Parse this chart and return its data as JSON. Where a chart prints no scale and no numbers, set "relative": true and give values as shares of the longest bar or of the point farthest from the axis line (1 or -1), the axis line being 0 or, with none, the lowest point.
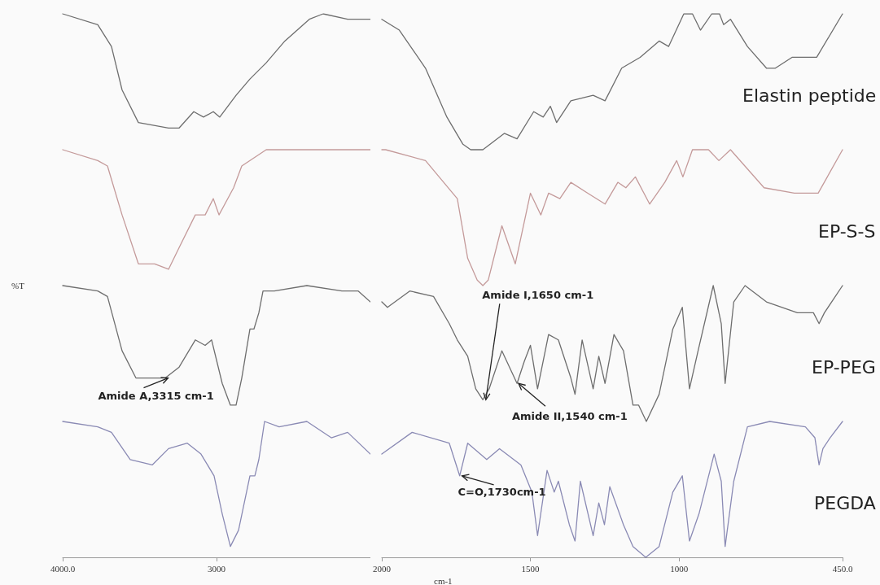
{
  "chart_data": [
    {
      "type": "line",
      "relative": true,
      "ylabel": "%T",
      "xlim": [
        4000,
        2000
      ],
      "xticks": [
        {
          "value": 4000,
          "label": "4000.0"
        },
        3000
      ],
      "grid": false,
      "legend": false,
      "marker": "none",
      "line_style": "solid",
      "series": [
        {
          "color": "#6e6e6e",
          "x": [
            4000,
            3772,
            3683,
            3614,
            3508,
            3312,
            3243,
            3148,
            3085,
            3021,
            2979,
            2873,
            2783,
            2677,
            2556,
            2397,
            2307,
            2148,
            2063,
            2011,
            2000
          ],
          "values": [
            1.0,
            0.98,
            0.94,
            0.86,
            0.8,
            0.79,
            0.79,
            0.82,
            0.81,
            0.82,
            0.81,
            0.85,
            0.88,
            0.91,
            0.95,
            0.99,
            1.0,
            0.99,
            0.99,
            0.99,
            0.99
          ]
        },
        {
          "color": "#c49a9a",
          "x": [
            4000,
            3772,
            3709,
            3614,
            3508,
            3402,
            3312,
            3243,
            3138,
            3074,
            3021,
            2984,
            2889,
            2836,
            2677,
            2328,
            2000
          ],
          "values": [
            0.75,
            0.73,
            0.72,
            0.63,
            0.54,
            0.54,
            0.53,
            0.57,
            0.63,
            0.63,
            0.66,
            0.63,
            0.68,
            0.72,
            0.75,
            0.75,
            0.75
          ]
        },
        {
          "color": "#6e6e6e",
          "x": [
            4000,
            3772,
            3709,
            3614,
            3524,
            3333,
            3243,
            3138,
            3074,
            3032,
            2963,
            2910,
            2873,
            2836,
            2783,
            2757,
            2725,
            2698,
            2624,
            2413,
            2185,
            2079,
            2000
          ],
          "values": [
            0.5,
            0.49,
            0.48,
            0.38,
            0.33,
            0.33,
            0.35,
            0.4,
            0.39,
            0.4,
            0.32,
            0.28,
            0.28,
            0.33,
            0.42,
            0.42,
            0.45,
            0.49,
            0.49,
            0.5,
            0.49,
            0.49,
            0.47
          ]
        },
        {
          "color": "#8a8ab4",
          "x": [
            4000,
            3772,
            3683,
            3561,
            3418,
            3312,
            3190,
            3101,
            3016,
            2963,
            2910,
            2857,
            2783,
            2751,
            2725,
            2688,
            2593,
            2413,
            2254,
            2148,
            2000
          ],
          "values": [
            0.25,
            0.24,
            0.23,
            0.18,
            0.17,
            0.2,
            0.21,
            0.19,
            0.15,
            0.08,
            0.02,
            0.05,
            0.15,
            0.15,
            0.18,
            0.25,
            0.24,
            0.25,
            0.22,
            0.23,
            0.19
          ]
        }
      ],
      "annotations": [
        {
          "text": "Amide A,3315 cm-1",
          "x": 3315,
          "y": 0.33
        }
      ]
    },
    {
      "type": "line",
      "relative": true,
      "xlabel": "cm-1",
      "xlim": [
        2000,
        450
      ],
      "xticks": [
        2000,
        1500,
        1000,
        {
          "value": 450,
          "label": "450.0"
        }
      ],
      "grid": false,
      "legend": false,
      "marker": "none",
      "line_style": "solid",
      "series": [
        {
          "name": "Elastin peptide",
          "color": "#6e6e6e",
          "x": [
            2000,
            1941,
            1853,
            1781,
            1727,
            1701,
            1674,
            1660,
            1588,
            1545,
            1489,
            1457,
            1433,
            1412,
            1364,
            1289,
            1249,
            1193,
            1131,
            1067,
            1035,
            984,
            955,
            928,
            890,
            864,
            850,
            827,
            770,
            706,
            676,
            620,
            537,
            450
          ],
          "values": [
            0.99,
            0.97,
            0.9,
            0.81,
            0.76,
            0.75,
            0.75,
            0.75,
            0.78,
            0.77,
            0.82,
            0.81,
            0.83,
            0.8,
            0.84,
            0.85,
            0.84,
            0.9,
            0.92,
            0.95,
            0.94,
            1.0,
            1.0,
            0.97,
            1.0,
            1.0,
            0.98,
            0.99,
            0.94,
            0.9,
            0.9,
            0.92,
            0.92,
            1.0
          ]
        },
        {
          "name": "EP-S-S",
          "color": "#c49a9a",
          "x": [
            2000,
            1987,
            1853,
            1746,
            1711,
            1679,
            1660,
            1642,
            1596,
            1551,
            1500,
            1465,
            1439,
            1401,
            1364,
            1307,
            1249,
            1206,
            1179,
            1147,
            1099,
            1048,
            1008,
            987,
            955,
            901,
            866,
            827,
            714,
            612,
            532,
            450
          ],
          "values": [
            0.75,
            0.75,
            0.73,
            0.66,
            0.55,
            0.51,
            0.5,
            0.51,
            0.61,
            0.54,
            0.67,
            0.63,
            0.67,
            0.66,
            0.69,
            0.67,
            0.65,
            0.69,
            0.68,
            0.7,
            0.65,
            0.69,
            0.73,
            0.7,
            0.75,
            0.75,
            0.73,
            0.75,
            0.68,
            0.67,
            0.67,
            0.75
          ]
        },
        {
          "name": "EP-PEG",
          "color": "#6e6e6e",
          "x": [
            2000,
            1981,
            1906,
            1826,
            1773,
            1746,
            1711,
            1684,
            1660,
            1639,
            1596,
            1545,
            1521,
            1500,
            1476,
            1439,
            1406,
            1364,
            1350,
            1326,
            1289,
            1270,
            1249,
            1219,
            1187,
            1155,
            1136,
            1110,
            1067,
            1021,
            989,
            965,
            936,
            885,
            858,
            845,
            816,
            778,
            706,
            602,
            548,
            529,
            511,
            450
          ],
          "values": [
            0.47,
            0.46,
            0.49,
            0.48,
            0.43,
            0.4,
            0.37,
            0.31,
            0.29,
            0.31,
            0.38,
            0.32,
            0.36,
            0.39,
            0.31,
            0.41,
            0.4,
            0.33,
            0.3,
            0.4,
            0.31,
            0.37,
            0.32,
            0.41,
            0.38,
            0.28,
            0.28,
            0.25,
            0.3,
            0.42,
            0.46,
            0.31,
            0.38,
            0.5,
            0.43,
            0.32,
            0.47,
            0.5,
            0.47,
            0.45,
            0.45,
            0.43,
            0.45,
            0.5
          ]
        },
        {
          "name": "PEGDA",
          "color": "#8a8ab4",
          "x": [
            2000,
            1898,
            1773,
            1738,
            1711,
            1647,
            1604,
            1532,
            1495,
            1476,
            1444,
            1420,
            1406,
            1369,
            1350,
            1332,
            1289,
            1270,
            1251,
            1233,
            1187,
            1155,
            1112,
            1067,
            1021,
            989,
            965,
            933,
            882,
            858,
            845,
            816,
            770,
            695,
            575,
            543,
            529,
            516,
            492,
            450
          ],
          "values": [
            0.19,
            0.23,
            0.21,
            0.15,
            0.21,
            0.18,
            0.2,
            0.17,
            0.12,
            0.04,
            0.16,
            0.12,
            0.14,
            0.06,
            0.03,
            0.14,
            0.04,
            0.1,
            0.06,
            0.13,
            0.06,
            0.02,
            0.0,
            0.02,
            0.12,
            0.15,
            0.03,
            0.08,
            0.19,
            0.14,
            0.02,
            0.14,
            0.24,
            0.25,
            0.24,
            0.22,
            0.17,
            0.2,
            0.22,
            0.25
          ]
        }
      ],
      "annotations": [
        {
          "text": "Amide I,1650 cm-1",
          "x": 1650,
          "y": 0.29
        },
        {
          "text": "Amide II,1540 cm-1",
          "x": 1540,
          "y": 0.32
        },
        {
          "text": "C=O,1730cm-1",
          "x": 1730,
          "y": 0.15
        }
      ]
    }
  ]
}
